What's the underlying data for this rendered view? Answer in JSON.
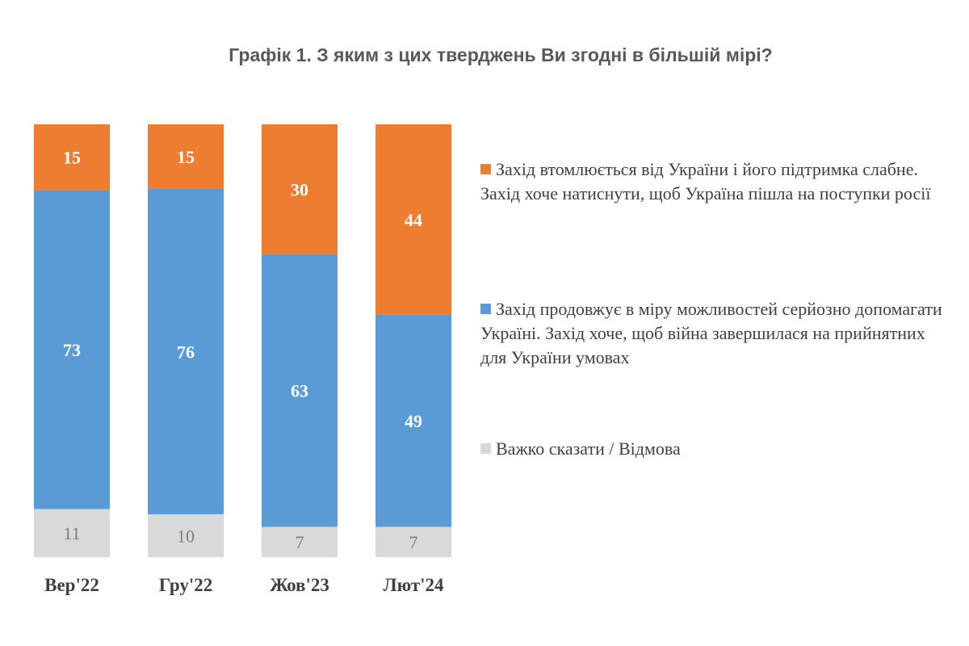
{
  "chart_data": {
    "type": "bar",
    "stacked": true,
    "title": "Графік 1. З яким з цих тверджень Ви згодні в більшій мірі?",
    "categories": [
      "Вер'22",
      "Гру'22",
      "Жов'23",
      "Лют'24"
    ],
    "series": [
      {
        "name": "Захід втомлюється від України і його підтримка слабне. Захід хоче натиснути, щоб Україна пішла на поступки росії",
        "color": "#ed7d31",
        "values": [
          15,
          15,
          30,
          44
        ]
      },
      {
        "name": "Захід продовжує в міру можливостей серйозно допомагати Україні. Захід хоче, щоб війна завершилася на прийнятних для України умовах",
        "color": "#5b9bd5",
        "values": [
          73,
          76,
          63,
          49
        ]
      },
      {
        "name": "Важко сказати / Відмова",
        "color": "#d9d9d9",
        "values": [
          11,
          10,
          7,
          7
        ]
      }
    ],
    "legend_position": "right",
    "grid": false
  }
}
